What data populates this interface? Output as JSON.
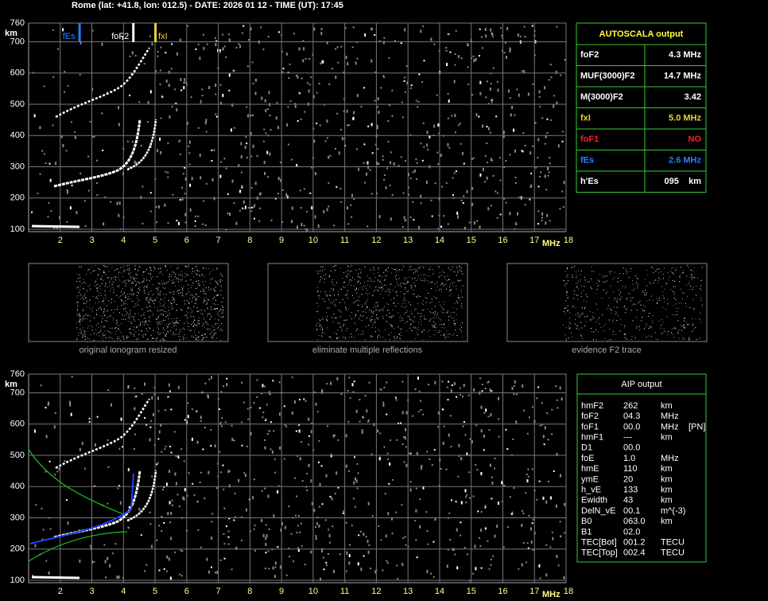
{
  "header": {
    "title": "Rome (lat: +41.8, lon: 012.5) - DATE: 2026 01 12 - TIME (UT): 17:45"
  },
  "ionograms": [
    {
      "xlim": [
        1,
        18
      ],
      "xticks": [
        2,
        3,
        4,
        5,
        6,
        7,
        8,
        9,
        10,
        11,
        12,
        13,
        14,
        15,
        16,
        17,
        18
      ],
      "ylim": [
        100,
        760
      ],
      "yticks": [
        100,
        200,
        300,
        400,
        500,
        600,
        700,
        760
      ],
      "y_unit": "km",
      "x_unit": "MHz",
      "markers": [
        {
          "label": "fEs",
          "value": 2.6,
          "color": "#2a7fff"
        },
        {
          "label": "foF2",
          "value": 4.3,
          "color": "#ffffff"
        },
        {
          "label": "fxI",
          "value": 5.0,
          "color": "#e8d040"
        }
      ]
    },
    {
      "xlim": [
        1,
        18
      ],
      "xticks": [
        2,
        3,
        4,
        5,
        6,
        7,
        8,
        9,
        10,
        11,
        12,
        13,
        14,
        15,
        16,
        17,
        18
      ],
      "ylim": [
        100,
        760
      ],
      "yticks": [
        100,
        200,
        300,
        400,
        500,
        600,
        700,
        760
      ],
      "y_unit": "km",
      "x_unit": "MHz"
    }
  ],
  "thumbnails": [
    "original ionogram resized",
    "eliminate multiple reflections",
    "evidence F2 trace"
  ],
  "autoscala": {
    "title": "AUTOSCALA output",
    "rows": [
      {
        "label": "foF2",
        "value": "4.3 MHz",
        "color": "#ffffff"
      },
      {
        "label": "MUF(3000)F2",
        "value": "14.7 MHz",
        "color": "#ffffff"
      },
      {
        "label": "M(3000)F2",
        "value": "3.42",
        "color": "#ffffff"
      },
      {
        "label": "fxI",
        "value": "5.0 MHz",
        "color": "#e8d040"
      },
      {
        "label": "foF1",
        "value": "NO",
        "color": "#ff2020"
      },
      {
        "label": "fEs",
        "value": "2.6 MHz",
        "color": "#2a7fff"
      },
      {
        "label": "h'Es",
        "value": "095    km",
        "color": "#ffffff"
      }
    ]
  },
  "aip": {
    "title": "AIP output",
    "rows": [
      [
        "hmF2",
        "262",
        "km"
      ],
      [
        "foF2",
        "04.3",
        "MHz"
      ],
      [
        "foF1",
        "00.0",
        "MHz",
        "[PN]"
      ],
      [
        "hmF1",
        "---",
        "km"
      ],
      [
        "D1",
        "00.0"
      ],
      [
        "foE",
        "1.0",
        "MHz"
      ],
      [
        "hmE",
        "110",
        "km"
      ],
      [
        "ymE",
        "20",
        "km"
      ],
      [
        "h_vE",
        "133",
        "km"
      ],
      [
        "Ewidth",
        "43",
        "km"
      ],
      [
        "DelN_vE",
        "00.1",
        "m^(-3)"
      ],
      [
        "B0",
        "063.0",
        "km"
      ],
      [
        "B1",
        "02.0"
      ],
      [
        "TEC[Bot]",
        "001.2",
        "TECU"
      ],
      [
        "TEC[Top]",
        "002.4",
        "TECU"
      ]
    ]
  }
}
